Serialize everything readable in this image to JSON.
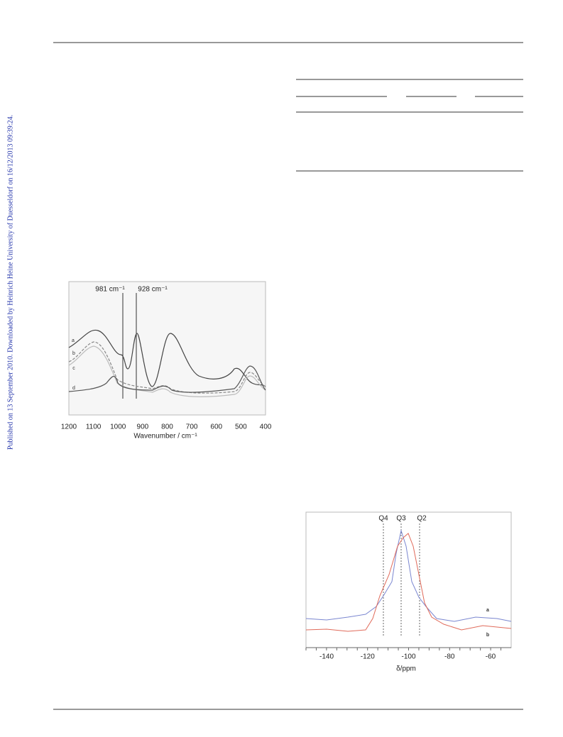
{
  "side_note": "Published on 13 September 2010. Downloaded by Heinrich Heine University of Duesseldorf on 16/12/2013 09:39:24.",
  "figure1": {
    "annotations": [
      "981 cm⁻¹",
      "928 cm⁻¹"
    ],
    "curve_labels": [
      "a",
      "b",
      "c",
      "d"
    ],
    "xticks": [
      "1200",
      "1100",
      "1000",
      "900",
      "800",
      "700",
      "600",
      "500",
      "400"
    ],
    "xlabel": "Wavenumber / cm⁻¹"
  },
  "figure2": {
    "annotations": [
      "Q4",
      "Q3",
      "Q2"
    ],
    "curve_labels": [
      "a",
      "b"
    ],
    "xticks": [
      "-140",
      "-120",
      "-100",
      "-80",
      "-60"
    ],
    "xlabel": "δ/ppm"
  }
}
